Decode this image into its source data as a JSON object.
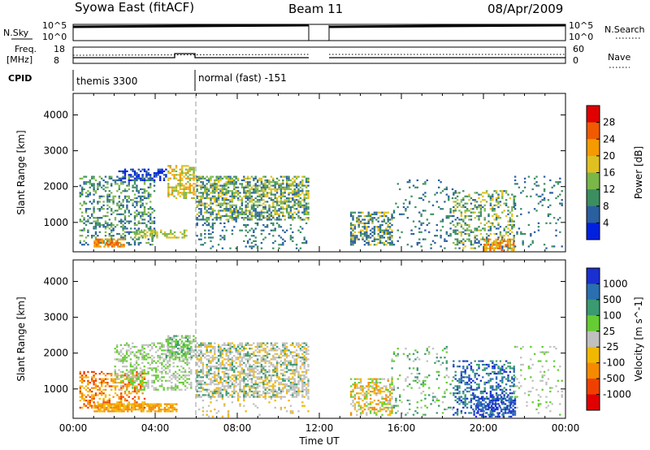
{
  "header": {
    "title": "Syowa East (fitACF)",
    "beam": "Beam 11",
    "date": "08/Apr/2009"
  },
  "top_panels": {
    "nsky_label": "N.Sky",
    "nsky_top": "10^5",
    "nsky_bottom": "10^0",
    "nsearch_label": "N.Search",
    "nsearch_top": "10^5",
    "nsearch_bottom": "10^0",
    "freq_label": "Freq.",
    "freq_unit": "[MHz]",
    "freq_top": "18",
    "freq_bottom": "8",
    "nave_label": "Nave",
    "nave_top": "60",
    "nave_bottom": "0",
    "cpid_label": "CPID",
    "cpid_segments": [
      "themis 3300",
      "normal (fast) -151"
    ]
  },
  "chart_data": [
    {
      "type": "heatmap",
      "name": "power",
      "ylabel": "Slant Range [km]",
      "ylim": [
        180,
        4600
      ],
      "yticks": [
        1000,
        2000,
        3000,
        4000
      ],
      "xlim": [
        0,
        24
      ],
      "colorbar": {
        "label": "Power [dB]",
        "ticks": [
          "28",
          "24",
          "20",
          "16",
          "12",
          "8",
          "4"
        ],
        "colors": [
          "#e00000",
          "#f05a00",
          "#f59a00",
          "#e0c020",
          "#7ab648",
          "#3c8e60",
          "#2a5fa0",
          "#0020e0"
        ]
      },
      "blobs": [
        {
          "t0": 0.3,
          "t1": 4.0,
          "r0": 400,
          "r1": 2300,
          "c": [
            5,
            4,
            6
          ],
          "d": 0.35
        },
        {
          "t0": 1.0,
          "t1": 2.5,
          "r0": 350,
          "r1": 550,
          "c": [
            1,
            2
          ],
          "d": 0.7
        },
        {
          "t0": 3.0,
          "t1": 5.5,
          "r0": 600,
          "r1": 800,
          "c": [
            3,
            4
          ],
          "d": 0.5
        },
        {
          "t0": 2.2,
          "t1": 4.5,
          "r0": 2200,
          "r1": 2500,
          "c": [
            6,
            7
          ],
          "d": 0.5
        },
        {
          "t0": 4.6,
          "t1": 5.9,
          "r0": 1700,
          "r1": 2600,
          "c": [
            2,
            3,
            4
          ],
          "d": 0.55
        },
        {
          "t0": 6.0,
          "t1": 11.5,
          "r0": 1100,
          "r1": 2300,
          "c": [
            6,
            5,
            4,
            3
          ],
          "d": 0.6
        },
        {
          "t0": 6.0,
          "t1": 11.5,
          "r0": 300,
          "r1": 1100,
          "c": [
            6,
            5
          ],
          "d": 0.15
        },
        {
          "t0": 13.5,
          "t1": 15.5,
          "r0": 400,
          "r1": 1300,
          "c": [
            6,
            5,
            3
          ],
          "d": 0.5
        },
        {
          "t0": 15.5,
          "t1": 18.5,
          "r0": 300,
          "r1": 2200,
          "c": [
            6,
            5
          ],
          "d": 0.12
        },
        {
          "t0": 18.5,
          "t1": 21.5,
          "r0": 300,
          "r1": 1900,
          "c": [
            6,
            5,
            4,
            3
          ],
          "d": 0.35
        },
        {
          "t0": 20.0,
          "t1": 21.5,
          "r0": 250,
          "r1": 550,
          "c": [
            1,
            2,
            3
          ],
          "d": 0.55
        },
        {
          "t0": 21.5,
          "t1": 23.8,
          "r0": 300,
          "r1": 2300,
          "c": [
            6,
            5
          ],
          "d": 0.1
        }
      ]
    },
    {
      "type": "heatmap",
      "name": "velocity",
      "ylabel": "Slant Range [km]",
      "ylim": [
        180,
        4600
      ],
      "yticks": [
        1000,
        2000,
        3000,
        4000
      ],
      "xlim": [
        0,
        24
      ],
      "xticks": [
        "00:00",
        "04:00",
        "08:00",
        "12:00",
        "16:00",
        "20:00",
        "00:00"
      ],
      "xlabel": "Time UT",
      "colorbar": {
        "label": "Velocity [m s^-1]",
        "ticks": [
          "1000",
          "500",
          "100",
          "25",
          "-25",
          "-100",
          "-500",
          "-1000"
        ],
        "colors": [
          "#1a2fd0",
          "#2a6fb0",
          "#3a9a70",
          "#66cc33",
          "#c0c0c0",
          "#f2b800",
          "#f58a00",
          "#f04000",
          "#e00000"
        ]
      },
      "blobs": [
        {
          "t0": 0.3,
          "t1": 3.5,
          "r0": 500,
          "r1": 1500,
          "c": [
            5,
            6,
            7
          ],
          "d": 0.45
        },
        {
          "t0": 1.0,
          "t1": 5.0,
          "r0": 400,
          "r1": 600,
          "c": [
            5,
            6
          ],
          "d": 0.75
        },
        {
          "t0": 2.0,
          "t1": 5.8,
          "r0": 1000,
          "r1": 2300,
          "c": [
            4,
            3
          ],
          "d": 0.4
        },
        {
          "t0": 4.5,
          "t1": 6.0,
          "r0": 1900,
          "r1": 2500,
          "c": [
            4,
            3,
            2
          ],
          "d": 0.55
        },
        {
          "t0": 6.0,
          "t1": 11.5,
          "r0": 800,
          "r1": 2300,
          "c": [
            4,
            4,
            2,
            5
          ],
          "d": 0.55
        },
        {
          "t0": 6.0,
          "t1": 11.5,
          "r0": 250,
          "r1": 800,
          "c": [
            5,
            4
          ],
          "d": 0.12
        },
        {
          "t0": 13.5,
          "t1": 15.5,
          "r0": 300,
          "r1": 1300,
          "c": [
            4,
            5,
            6,
            3
          ],
          "d": 0.5
        },
        {
          "t0": 15.5,
          "t1": 18.5,
          "r0": 300,
          "r1": 2200,
          "c": [
            3,
            4,
            2
          ],
          "d": 0.12
        },
        {
          "t0": 18.5,
          "t1": 21.5,
          "r0": 300,
          "r1": 1800,
          "c": [
            0,
            1,
            2
          ],
          "d": 0.35
        },
        {
          "t0": 19.5,
          "t1": 21.5,
          "r0": 250,
          "r1": 800,
          "c": [
            0,
            1
          ],
          "d": 0.5
        },
        {
          "t0": 21.5,
          "t1": 23.8,
          "r0": 300,
          "r1": 2200,
          "c": [
            4,
            3
          ],
          "d": 0.1
        }
      ]
    }
  ]
}
